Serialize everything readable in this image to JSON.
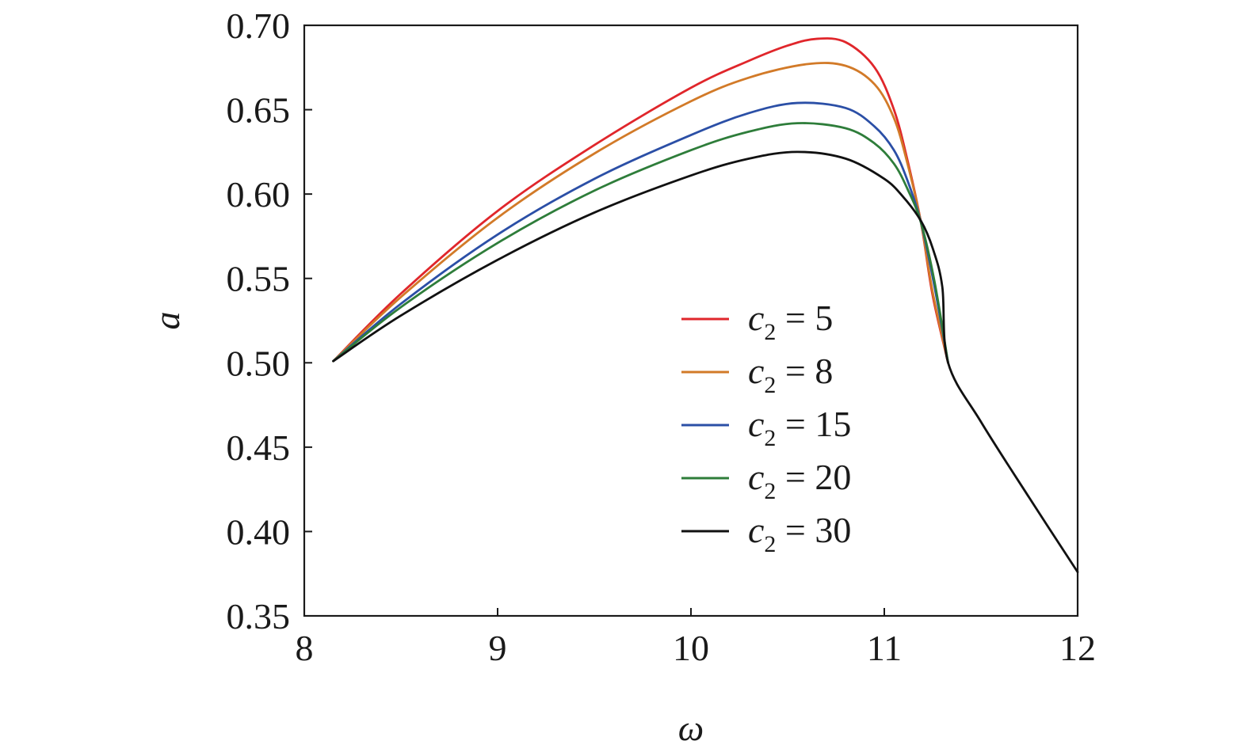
{
  "chart_data": {
    "type": "line",
    "xlabel": "ω",
    "ylabel": "a",
    "xlim": [
      8,
      12
    ],
    "ylim": [
      0.35,
      0.7
    ],
    "x_ticks": [
      "8",
      "9",
      "10",
      "11",
      "12"
    ],
    "y_ticks": [
      "0.35",
      "0.40",
      "0.45",
      "0.50",
      "0.55",
      "0.60",
      "0.65",
      "0.70"
    ],
    "legend_position": "center-right",
    "grid": false,
    "series": [
      {
        "name": "c2 = 5",
        "legend_var": "c",
        "legend_sub": "2",
        "legend_rest": " = 5",
        "color": "#e0262b",
        "x": [
          8.15,
          8.5,
          9.0,
          9.5,
          10.0,
          10.3,
          10.5,
          10.65,
          10.8,
          10.95,
          11.05,
          11.12,
          11.19,
          11.25,
          11.33
        ],
        "y": [
          0.501,
          0.541,
          0.59,
          0.629,
          0.663,
          0.679,
          0.688,
          0.692,
          0.69,
          0.675,
          0.65,
          0.62,
          0.583,
          0.54,
          0.5
        ]
      },
      {
        "name": "c2 = 8",
        "legend_var": "c",
        "legend_sub": "2",
        "legend_rest": " = 8",
        "color": "#d27a28",
        "x": [
          8.15,
          8.5,
          9.0,
          9.5,
          10.0,
          10.3,
          10.6,
          10.8,
          10.95,
          11.05,
          11.12,
          11.19,
          11.25,
          11.33
        ],
        "y": [
          0.501,
          0.539,
          0.586,
          0.624,
          0.655,
          0.669,
          0.677,
          0.676,
          0.665,
          0.645,
          0.618,
          0.583,
          0.542,
          0.5
        ]
      },
      {
        "name": "c2 = 15",
        "legend_var": "c",
        "legend_sub": "2",
        "legend_rest": " = 15",
        "color": "#2b4fa6",
        "x": [
          8.15,
          8.5,
          9.0,
          9.5,
          10.0,
          10.3,
          10.55,
          10.8,
          10.95,
          11.05,
          11.12,
          11.19,
          11.26,
          11.33
        ],
        "y": [
          0.501,
          0.535,
          0.576,
          0.609,
          0.635,
          0.648,
          0.654,
          0.651,
          0.64,
          0.626,
          0.608,
          0.583,
          0.545,
          0.5
        ]
      },
      {
        "name": "c2 = 20",
        "legend_var": "c",
        "legend_sub": "2",
        "legend_rest": " = 20",
        "color": "#2e7d3a",
        "x": [
          8.15,
          8.5,
          9.0,
          9.5,
          10.0,
          10.3,
          10.55,
          10.8,
          10.95,
          11.05,
          11.12,
          11.19,
          11.26,
          11.33
        ],
        "y": [
          0.501,
          0.533,
          0.571,
          0.602,
          0.626,
          0.637,
          0.642,
          0.639,
          0.63,
          0.618,
          0.603,
          0.583,
          0.548,
          0.5
        ]
      },
      {
        "name": "c2 = 30",
        "legend_var": "c",
        "legend_sub": "2",
        "legend_rest": " = 30",
        "color": "#111111",
        "x": [
          8.15,
          8.5,
          9.0,
          9.5,
          10.0,
          10.3,
          10.55,
          10.8,
          11.0,
          11.1,
          11.19,
          11.25,
          11.3,
          11.33,
          11.5,
          11.75,
          12.0
        ],
        "y": [
          0.501,
          0.528,
          0.561,
          0.589,
          0.611,
          0.621,
          0.625,
          0.621,
          0.609,
          0.598,
          0.584,
          0.568,
          0.545,
          0.5,
          0.465,
          0.42,
          0.376
        ]
      }
    ]
  }
}
